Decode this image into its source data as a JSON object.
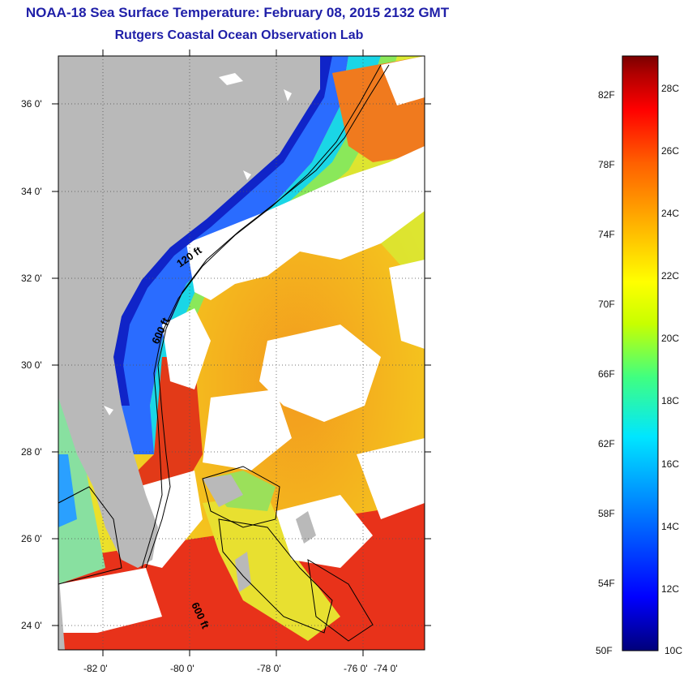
{
  "header": {
    "title": "NOAA-18 Sea Surface Temperature:  February 08, 2015 2132 GMT",
    "subtitle": "Rutgers Coastal Ocean Observation Lab"
  },
  "map": {
    "lon_labels": [
      "-82 0'",
      "-80 0'",
      "-78 0'",
      "-76 0'",
      "-74 0'"
    ],
    "lat_labels": [
      "36 0'",
      "34 0'",
      "32 0'",
      "30 0'",
      "28 0'",
      "26 0'",
      "24 0'"
    ],
    "contour_labels": [
      "120 ft",
      "600 ft",
      "600 ft"
    ],
    "colors": {
      "land": "#b9b9b9",
      "cloud": "#ffffff",
      "warm_core": "#f07a1e",
      "gulf_stream": "#e23a18"
    }
  },
  "colorbar": {
    "f_labels": [
      "82F",
      "78F",
      "74F",
      "70F",
      "66F",
      "62F",
      "58F",
      "54F",
      "50F"
    ],
    "c_labels": [
      "28C",
      "26C",
      "24C",
      "22C",
      "20C",
      "18C",
      "16C",
      "14C",
      "12C",
      "10C"
    ],
    "stops": [
      "#00007a",
      "#0000ff",
      "#0080ff",
      "#00e6ff",
      "#40ff80",
      "#c8ff00",
      "#ffff00",
      "#ffb000",
      "#ff6000",
      "#ff0000",
      "#a00000",
      "#7a0000"
    ]
  }
}
